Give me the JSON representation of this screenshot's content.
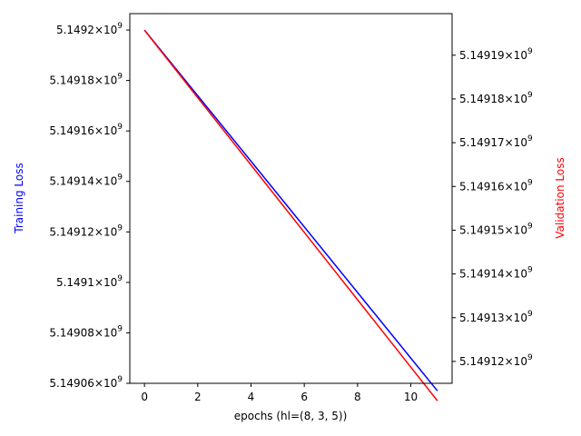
{
  "chart_data": {
    "type": "line",
    "xlabel": "epochs (hl=(8, 3, 5))",
    "x_ticks": [
      "0",
      "2",
      "4",
      "6",
      "8",
      "10"
    ],
    "xlim": [
      -0.55,
      11.55
    ],
    "left_axis": {
      "label": "Training Loss",
      "color": "#0000ff",
      "scale": "log",
      "ylim": [
        5149060000,
        5149206500
      ],
      "ticks": [
        {
          "value": 5149200000,
          "mantissa": "5.1492"
        },
        {
          "value": 5149180000,
          "mantissa": "5.14918"
        },
        {
          "value": 5149160000,
          "mantissa": "5.14916"
        },
        {
          "value": 5149140000,
          "mantissa": "5.14914"
        },
        {
          "value": 5149120000,
          "mantissa": "5.14912"
        },
        {
          "value": 5149100000,
          "mantissa": "5.1491"
        },
        {
          "value": 5149080000,
          "mantissa": "5.14908"
        },
        {
          "value": 5149060000,
          "mantissa": "5.14906"
        }
      ]
    },
    "right_axis": {
      "label": "Validation Loss",
      "color": "#ff0000",
      "scale": "log",
      "ylim": [
        5149115000,
        5149199500
      ],
      "ticks": [
        {
          "value": 5149190000,
          "mantissa": "5.14919"
        },
        {
          "value": 5149180000,
          "mantissa": "5.14918"
        },
        {
          "value": 5149170000,
          "mantissa": "5.14917"
        },
        {
          "value": 5149160000,
          "mantissa": "5.14916"
        },
        {
          "value": 5149150000,
          "mantissa": "5.14915"
        },
        {
          "value": 5149140000,
          "mantissa": "5.14914"
        },
        {
          "value": 5149130000,
          "mantissa": "5.14913"
        },
        {
          "value": 5149120000,
          "mantissa": "5.14912"
        }
      ]
    },
    "exponent_base": "×10",
    "exponent": "9",
    "series": [
      {
        "axis": "left",
        "color": "#0000ff",
        "x": [
          0,
          1,
          2,
          3,
          4,
          5,
          6,
          7,
          8,
          9,
          10,
          11
        ],
        "y": [
          5149200000,
          5149187000,
          5149174000,
          5149161000,
          5149148000,
          5149135000,
          5149122000,
          5149109000,
          5149096000,
          5149083000,
          5149070000,
          5149057000
        ]
      },
      {
        "axis": "right",
        "color": "#ff0000",
        "x": [
          0,
          1,
          2,
          3,
          4,
          5,
          6,
          7,
          8,
          9,
          10,
          11
        ],
        "y": [
          5149195700,
          5149188000,
          5149180300,
          5149172600,
          5149164900,
          5149157200,
          5149149500,
          5149141800,
          5149134100,
          5149126400,
          5149118700,
          5149111000
        ]
      }
    ]
  }
}
